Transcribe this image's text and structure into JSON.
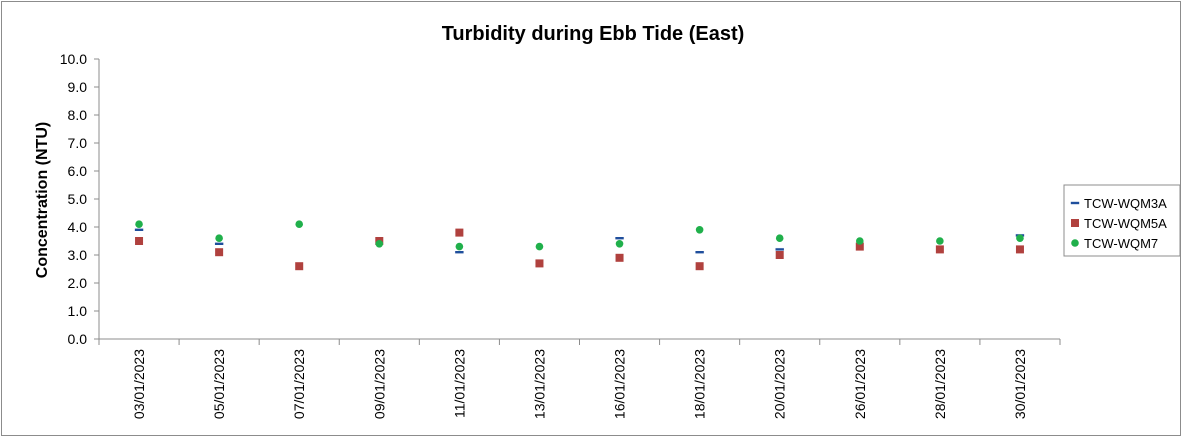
{
  "chart_data": {
    "type": "scatter",
    "title": "Turbidity during Ebb Tide (East)",
    "xlabel": "",
    "ylabel": "Concentration (NTU)",
    "ylim": [
      0,
      10
    ],
    "y_ticks": [
      "0.0",
      "1.0",
      "2.0",
      "3.0",
      "4.0",
      "5.0",
      "6.0",
      "7.0",
      "8.0",
      "9.0",
      "10.0"
    ],
    "categories": [
      "03/01/2023",
      "05/01/2023",
      "07/01/2023",
      "09/01/2023",
      "11/01/2023",
      "13/01/2023",
      "16/01/2023",
      "18/01/2023",
      "20/01/2023",
      "26/01/2023",
      "28/01/2023",
      "30/01/2023"
    ],
    "grid": false,
    "legend_position": "right",
    "series": [
      {
        "name": "TCW-WQM3A",
        "marker": "dash",
        "color": "#1f4e9c",
        "values": [
          3.9,
          3.4,
          null,
          null,
          3.1,
          null,
          3.6,
          3.1,
          3.2,
          null,
          null,
          3.7
        ]
      },
      {
        "name": "TCW-WQM5A",
        "marker": "square",
        "color": "#b0413e",
        "values": [
          3.5,
          3.1,
          2.6,
          3.5,
          3.8,
          2.7,
          2.9,
          2.6,
          3.0,
          3.3,
          3.2,
          3.2
        ]
      },
      {
        "name": "TCW-WQM7",
        "marker": "circle",
        "color": "#20b04b",
        "values": [
          4.1,
          3.6,
          4.1,
          3.4,
          3.3,
          3.3,
          3.4,
          3.9,
          3.6,
          3.5,
          3.5,
          3.6
        ]
      }
    ]
  }
}
